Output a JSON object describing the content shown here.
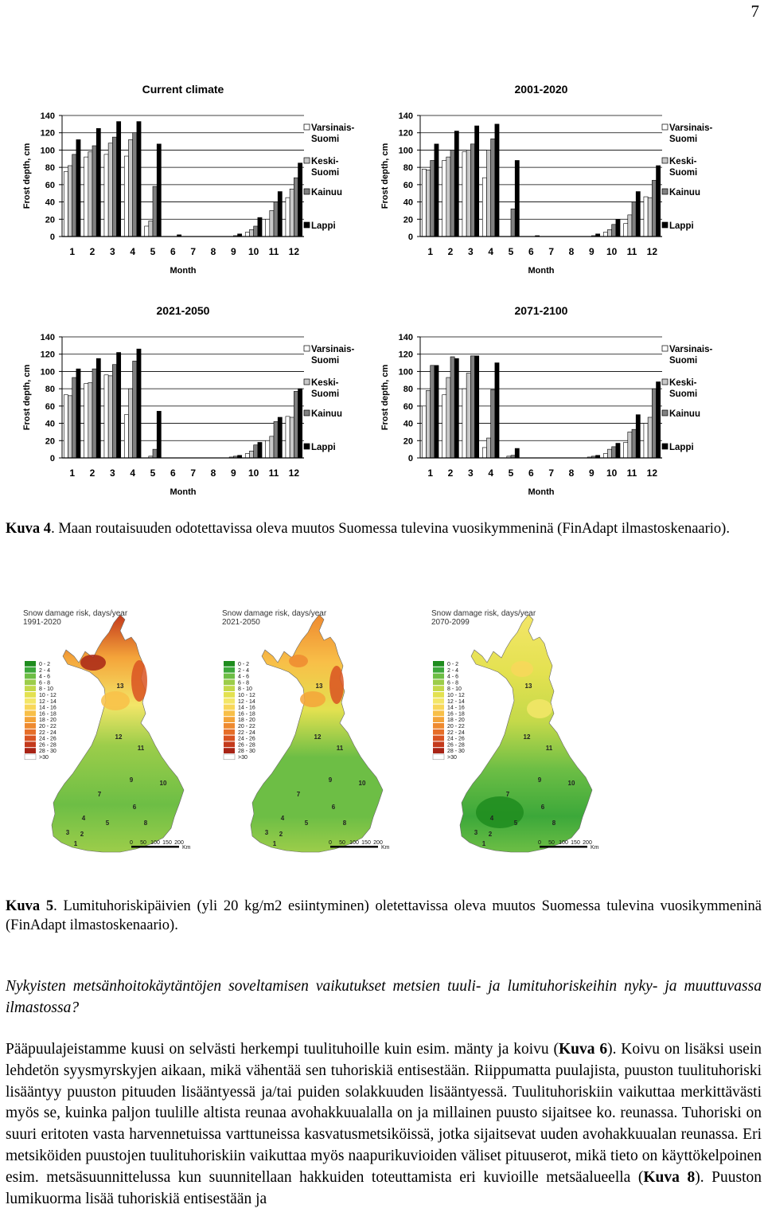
{
  "page_number": "7",
  "chart_data": [
    {
      "type": "bar",
      "title": "Current climate",
      "xlabel": "Month",
      "ylabel": "Frost depth, cm",
      "ylim": [
        0,
        140
      ],
      "yticks": [
        0,
        20,
        40,
        60,
        80,
        100,
        120,
        140
      ],
      "categories": [
        "1",
        "2",
        "3",
        "4",
        "5",
        "6",
        "7",
        "8",
        "9",
        "10",
        "11",
        "12"
      ],
      "legend": "right",
      "series": [
        {
          "name": "Varsinais-Suomi",
          "color": "#ffffff",
          "values": [
            75,
            92,
            95,
            93,
            12,
            0,
            0,
            0,
            0,
            5,
            20,
            45
          ]
        },
        {
          "name": "Keski-Suomi",
          "color": "#c8c8c8",
          "values": [
            82,
            98,
            108,
            112,
            18,
            0,
            0,
            0,
            0,
            8,
            30,
            55
          ]
        },
        {
          "name": "Kainuu",
          "color": "#808080",
          "values": [
            95,
            105,
            115,
            120,
            58,
            0,
            0,
            0,
            1,
            12,
            40,
            68
          ]
        },
        {
          "name": "Lappi",
          "color": "#000000",
          "values": [
            112,
            125,
            133,
            133,
            107,
            2,
            0,
            0,
            3,
            22,
            52,
            85
          ]
        }
      ]
    },
    {
      "type": "bar",
      "title": "2001-2020",
      "xlabel": "Month",
      "ylabel": "Frost depth, cm",
      "ylim": [
        0,
        140
      ],
      "yticks": [
        0,
        20,
        40,
        60,
        80,
        100,
        120,
        140
      ],
      "categories": [
        "1",
        "2",
        "3",
        "4",
        "5",
        "6",
        "7",
        "8",
        "9",
        "10",
        "11",
        "12"
      ],
      "legend": "right",
      "series": [
        {
          "name": "Varsinais-Suomi",
          "color": "#ffffff",
          "values": [
            78,
            88,
            98,
            68,
            0,
            0,
            0,
            0,
            0,
            5,
            15,
            46
          ]
        },
        {
          "name": "Keski-Suomi",
          "color": "#c8c8c8",
          "values": [
            77,
            92,
            100,
            100,
            0,
            0,
            0,
            0,
            0,
            8,
            25,
            45
          ]
        },
        {
          "name": "Kainuu",
          "color": "#808080",
          "values": [
            88,
            100,
            107,
            113,
            32,
            0,
            0,
            0,
            1,
            14,
            40,
            65
          ]
        },
        {
          "name": "Lappi",
          "color": "#000000",
          "values": [
            107,
            122,
            128,
            130,
            88,
            1,
            0,
            0,
            3,
            20,
            52,
            82
          ]
        }
      ]
    },
    {
      "type": "bar",
      "title": "2021-2050",
      "xlabel": "Month",
      "ylabel": "Frost depth, cm",
      "ylim": [
        0,
        140
      ],
      "yticks": [
        0,
        20,
        40,
        60,
        80,
        100,
        120,
        140
      ],
      "categories": [
        "1",
        "2",
        "3",
        "4",
        "5",
        "6",
        "7",
        "8",
        "9",
        "10",
        "11",
        "12"
      ],
      "legend": "right",
      "series": [
        {
          "name": "Varsinais-Suomi",
          "color": "#ffffff",
          "values": [
            73,
            86,
            96,
            50,
            0,
            0,
            0,
            0,
            0,
            5,
            20,
            48
          ]
        },
        {
          "name": "Keski-Suomi",
          "color": "#c8c8c8",
          "values": [
            72,
            87,
            95,
            80,
            2,
            0,
            0,
            0,
            1,
            8,
            25,
            47
          ]
        },
        {
          "name": "Kainuu",
          "color": "#808080",
          "values": [
            93,
            103,
            108,
            112,
            10,
            0,
            0,
            0,
            2,
            15,
            42,
            77
          ]
        },
        {
          "name": "Lappi",
          "color": "#000000",
          "values": [
            103,
            115,
            122,
            126,
            54,
            0,
            0,
            0,
            3,
            18,
            47,
            80
          ]
        }
      ]
    },
    {
      "type": "bar",
      "title": "2071-2100",
      "xlabel": "Month",
      "ylabel": "Frost depth, cm",
      "ylim": [
        0,
        140
      ],
      "yticks": [
        0,
        20,
        40,
        60,
        80,
        100,
        120,
        140
      ],
      "categories": [
        "1",
        "2",
        "3",
        "4",
        "5",
        "6",
        "7",
        "8",
        "9",
        "10",
        "11",
        "12"
      ],
      "legend": "right",
      "series": [
        {
          "name": "Varsinais-Suomi",
          "color": "#ffffff",
          "values": [
            60,
            73,
            80,
            12,
            0,
            0,
            0,
            0,
            0,
            5,
            18,
            40
          ]
        },
        {
          "name": "Keski-Suomi",
          "color": "#c8c8c8",
          "values": [
            78,
            93,
            98,
            23,
            2,
            0,
            0,
            0,
            1,
            10,
            30,
            47
          ]
        },
        {
          "name": "Kainuu",
          "color": "#808080",
          "values": [
            107,
            117,
            118,
            79,
            3,
            0,
            0,
            0,
            2,
            13,
            33,
            80
          ]
        },
        {
          "name": "Lappi",
          "color": "#000000",
          "values": [
            107,
            115,
            118,
            110,
            11,
            0,
            0,
            0,
            3,
            17,
            50,
            88
          ]
        }
      ]
    }
  ],
  "legend_lines": {
    "vs": [
      "Varsinais-",
      "Suomi"
    ],
    "ks": [
      "Keski-",
      "Suomi"
    ],
    "ka": [
      "Kainuu"
    ],
    "la": [
      "Lappi"
    ]
  },
  "caption4": {
    "label": "Kuva 4",
    "text": ". Maan routaisuuden odotettavissa oleva muutos Suomessa tulevina vuosikymmeninä (FinAdapt ilmastoskenaario)."
  },
  "maps": [
    {
      "title_line1": "Snow damage risk, days/year",
      "title_line2": "1991-2020"
    },
    {
      "title_line1": "Snow damage risk, days/year",
      "title_line2": "2021-2050"
    },
    {
      "title_line1": "Snow damage risk, days/year",
      "title_line2": "2070-2099"
    }
  ],
  "map_legend": [
    {
      "label": "0 - 2",
      "color": "#1e8c1e"
    },
    {
      "label": "2 - 4",
      "color": "#3ca83a"
    },
    {
      "label": "4 - 6",
      "color": "#6dbe45"
    },
    {
      "label": "6 - 8",
      "color": "#9ccd4a"
    },
    {
      "label": "8 - 10",
      "color": "#c4d94a"
    },
    {
      "label": "10 - 12",
      "color": "#e3e150"
    },
    {
      "label": "12 - 14",
      "color": "#f3e668"
    },
    {
      "label": "14 - 16",
      "color": "#f8d75a"
    },
    {
      "label": "16 - 18",
      "color": "#f8bf48"
    },
    {
      "label": "18 - 20",
      "color": "#f4a43a"
    },
    {
      "label": "20 - 22",
      "color": "#ee8a30"
    },
    {
      "label": "22 - 24",
      "color": "#e66e28"
    },
    {
      "label": "24 - 26",
      "color": "#d95322"
    },
    {
      "label": "26 - 28",
      "color": "#c43a1c"
    },
    {
      "label": "28 - 30",
      "color": "#a82416"
    },
    {
      "label": ">30",
      "color": "#ffffff"
    }
  ],
  "map_scale": {
    "ticks": [
      "0",
      "50",
      "100",
      "150",
      "200"
    ],
    "unit": "Km"
  },
  "map_regions": [
    "13",
    "12",
    "11",
    "9",
    "10",
    "7",
    "6",
    "8",
    "5",
    "4",
    "3",
    "2",
    "1"
  ],
  "caption5": {
    "label": "Kuva 5",
    "text": ". Lumituhoriskipäivien (yli 20 kg/m2 esiintyminen) oletettavissa oleva muutos Suomessa tulevina vuosikymmeninä (FinAdapt ilmastoskenaario)."
  },
  "question": "Nykyisten metsänhoitokäytäntöjen soveltamisen vaikutukset metsien tuuli- ja lumituhoriskeihin nyky- ja muuttuvassa ilmastossa?",
  "paragraph": {
    "p1": "Pääpuulajeistamme kuusi on selvästi herkempi tuulituhoille kuin esim. mänty ja koivu (",
    "ref1": "Kuva 6",
    "p2": "). Koivu on lisäksi usein lehdetön syysmyrskyjen aikaan, mikä vähentää sen tuhoriskiä entisestään. Riippumatta puulajista, puuston tuulituhoriski lisääntyy puuston pituuden lisääntyessä ja/tai puiden solakkuuden lisääntyessä. Tuulituhoriskiin vaikuttaa merkittävästi myös se, kuinka paljon tuulille altista reunaa avohakkuualalla on ja millainen puusto sijaitsee ko. reunassa. Tuhoriski on suuri eritoten vasta harvennetuissa varttuneissa kasvatusmetsiköissä, jotka sijaitsevat uuden avohakkuualan reunassa. Eri metsiköiden puustojen tuulituhoriskiin vaikuttaa myös naapurikuvioiden väliset pituuserot, mikä tieto on käyttökelpoinen esim. metsäsuunnittelussa kun suunnitellaan hakkuiden toteuttamista eri kuvioille metsäalueella (",
    "ref2": "Kuva 8",
    "p3": "). Puuston lumikuorma lisää tuhoriskiä entisestään ja"
  }
}
